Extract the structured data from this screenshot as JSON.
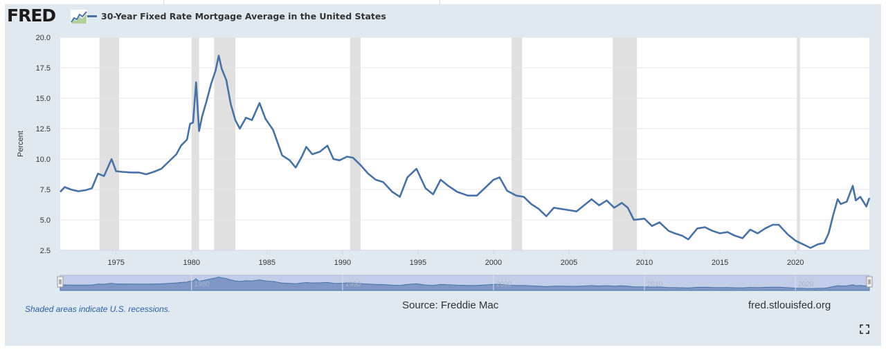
{
  "header": {
    "logo_text": "FRED",
    "legend_label": "30-Year Fixed Rate Mortgage Average in the United States"
  },
  "footer": {
    "recession_note": "Shaded areas indicate U.S. recessions.",
    "source": "Source: Freddie Mac",
    "site": "fred.stlouisfed.org"
  },
  "icons": {
    "logo_mark": "line-chart-icon",
    "fullscreen": "fullscreen-icon"
  },
  "colors": {
    "series": "#4572a7",
    "recession": "#e0e0e0",
    "panel": "#e1e9f0"
  },
  "chart_data": {
    "type": "line",
    "title": "",
    "xlabel": "",
    "ylabel": "Percent",
    "xlim": [
      1971.3,
      2024.9
    ],
    "ylim": [
      2.5,
      20.0
    ],
    "yticks": [
      "2.5",
      "5.0",
      "7.5",
      "10.0",
      "12.5",
      "15.0",
      "17.5",
      "20.0"
    ],
    "xticks": [
      "1975",
      "1980",
      "1985",
      "1990",
      "1995",
      "2000",
      "2005",
      "2010",
      "2015",
      "2020"
    ],
    "grid": true,
    "legend": "top-left",
    "navigator_ticks": [
      "1980",
      "1990",
      "2000",
      "2010",
      "2020"
    ],
    "recessions": [
      [
        1973.9,
        1975.2
      ],
      [
        1980.0,
        1980.5
      ],
      [
        1981.5,
        1982.9
      ],
      [
        1990.5,
        1991.2
      ],
      [
        2001.2,
        2001.9
      ],
      [
        2007.9,
        2009.5
      ],
      [
        2020.1,
        2020.3
      ]
    ],
    "series": [
      {
        "name": "30-Year Fixed Rate Mortgage Average in the United States",
        "x": [
          1971.3,
          1971.6,
          1972.0,
          1972.5,
          1973.0,
          1973.4,
          1973.8,
          1974.2,
          1974.7,
          1975.0,
          1975.4,
          1976.0,
          1976.5,
          1977.0,
          1977.5,
          1978.0,
          1978.5,
          1979.0,
          1979.3,
          1979.7,
          1979.9,
          1980.1,
          1980.3,
          1980.5,
          1980.7,
          1981.0,
          1981.3,
          1981.6,
          1981.8,
          1982.0,
          1982.3,
          1982.6,
          1982.9,
          1983.2,
          1983.6,
          1984.0,
          1984.5,
          1984.9,
          1985.4,
          1986.0,
          1986.5,
          1986.9,
          1987.3,
          1987.6,
          1988.0,
          1988.5,
          1989.0,
          1989.4,
          1989.8,
          1990.3,
          1990.7,
          1991.2,
          1991.7,
          1992.2,
          1992.7,
          1993.3,
          1993.8,
          1994.3,
          1994.9,
          1995.5,
          1996.0,
          1996.5,
          1997.0,
          1997.6,
          1998.3,
          1998.9,
          1999.5,
          2000.0,
          2000.4,
          2000.9,
          2001.5,
          2002.0,
          2002.5,
          2003.0,
          2003.5,
          2004.0,
          2004.5,
          2005.0,
          2005.5,
          2006.0,
          2006.5,
          2007.0,
          2007.5,
          2008.0,
          2008.5,
          2008.9,
          2009.3,
          2010.0,
          2010.5,
          2011.0,
          2011.6,
          2012.0,
          2012.5,
          2012.9,
          2013.5,
          2014.0,
          2014.5,
          2015.0,
          2015.5,
          2016.0,
          2016.5,
          2017.0,
          2017.5,
          2018.0,
          2018.5,
          2018.9,
          2019.5,
          2020.0,
          2020.5,
          2021.0,
          2021.5,
          2021.9,
          2022.2,
          2022.5,
          2022.8,
          2023.0,
          2023.4,
          2023.8,
          2024.0,
          2024.3,
          2024.7,
          2024.9
        ],
        "values": [
          7.3,
          7.7,
          7.5,
          7.35,
          7.45,
          7.6,
          8.8,
          8.6,
          10.0,
          9.0,
          8.95,
          8.9,
          8.9,
          8.75,
          8.95,
          9.2,
          9.8,
          10.4,
          11.1,
          11.6,
          12.9,
          13.0,
          16.3,
          12.3,
          13.5,
          14.8,
          16.2,
          17.3,
          18.5,
          17.4,
          16.5,
          14.5,
          13.2,
          12.5,
          13.4,
          13.2,
          14.6,
          13.3,
          12.4,
          10.3,
          9.9,
          9.3,
          10.2,
          11.0,
          10.4,
          10.6,
          11.1,
          10.0,
          9.9,
          10.2,
          10.1,
          9.5,
          8.8,
          8.3,
          8.1,
          7.3,
          6.9,
          8.5,
          9.2,
          7.6,
          7.1,
          8.3,
          7.8,
          7.3,
          7.0,
          7.0,
          7.7,
          8.3,
          8.5,
          7.4,
          7.0,
          6.9,
          6.3,
          5.9,
          5.3,
          6.0,
          5.9,
          5.8,
          5.7,
          6.2,
          6.7,
          6.2,
          6.6,
          6.0,
          6.4,
          6.0,
          5.0,
          5.1,
          4.5,
          4.8,
          4.1,
          3.9,
          3.7,
          3.4,
          4.3,
          4.4,
          4.1,
          3.9,
          4.0,
          3.7,
          3.5,
          4.2,
          3.9,
          4.3,
          4.6,
          4.6,
          3.8,
          3.3,
          3.0,
          2.7,
          3.0,
          3.1,
          3.9,
          5.4,
          6.7,
          6.3,
          6.5,
          7.8,
          6.6,
          6.9,
          6.1,
          6.8
        ]
      }
    ]
  }
}
